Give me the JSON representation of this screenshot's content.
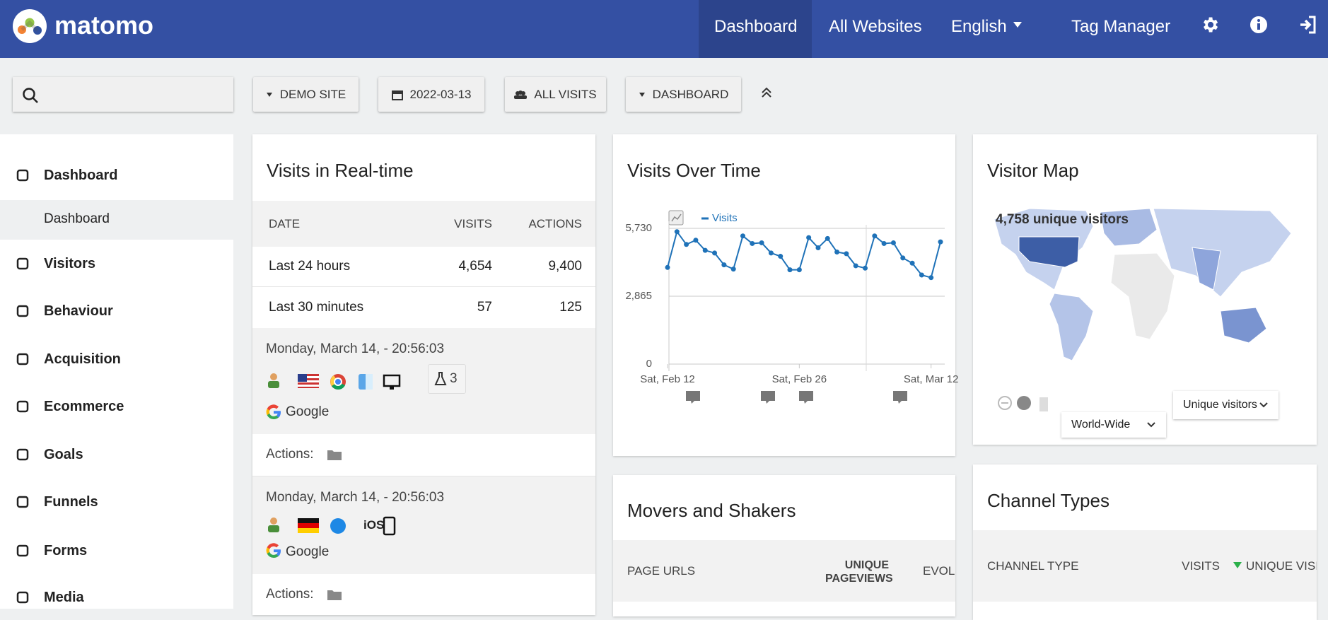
{
  "header": {
    "logo": "matomo",
    "nav": {
      "dashboard": "Dashboard",
      "all_websites": "All Websites",
      "language": "English",
      "tag_manager": "Tag Manager"
    }
  },
  "toolbar": {
    "site": "DEMO SITE",
    "date": "2022-03-13",
    "segment": "ALL VISITS",
    "dashboard": "DASHBOARD"
  },
  "sidebar": {
    "items": [
      "Dashboard",
      "Visitors",
      "Behaviour",
      "Acquisition",
      "Ecommerce",
      "Goals",
      "Funnels",
      "Forms",
      "Media"
    ],
    "subitem": "Dashboard"
  },
  "realtime": {
    "title": "Visits in Real-time",
    "columns": [
      "DATE",
      "VISITS",
      "ACTIONS"
    ],
    "rows": [
      [
        "Last 24 hours",
        "4,654",
        "9,400"
      ],
      [
        "Last 30 minutes",
        "57",
        "125"
      ]
    ],
    "visits": [
      {
        "time": "Monday, March 14, - 20:56:03",
        "experiments": "3",
        "referrer": "Google",
        "actions": "Actions:"
      },
      {
        "time": "Monday, March 14, - 20:56:03",
        "os": "iOS",
        "referrer": "Google",
        "actions": "Actions:"
      }
    ]
  },
  "chart_data": {
    "type": "line",
    "title": "Visits Over Time",
    "categories": [
      "Sat, Feb 12",
      null,
      null,
      null,
      null,
      null,
      null,
      null,
      null,
      null,
      null,
      null,
      null,
      null,
      "Sat, Feb 26",
      null,
      null,
      null,
      null,
      null,
      null,
      null,
      null,
      null,
      null,
      null,
      null,
      null,
      "Sat, Mar 12",
      null
    ],
    "series": [
      {
        "name": "Visits",
        "color": "#1f72b8",
        "values": [
          4080,
          5590,
          5050,
          5230,
          4800,
          4690,
          4190,
          4010,
          5410,
          5090,
          5120,
          4690,
          4550,
          3980,
          3980,
          5340,
          4910,
          5300,
          4730,
          4660,
          4150,
          4050,
          5410,
          5090,
          5120,
          4480,
          4260,
          3760,
          3650,
          5160
        ]
      }
    ],
    "ylim": [
      0,
      5730
    ],
    "yticks": [
      0,
      {
        "value": 2865,
        "label": "2,865"
      },
      {
        "value": 5730,
        "label": "5,730"
      }
    ],
    "grid": true
  },
  "visitor_map": {
    "title": "Visitor Map",
    "summary": "4,758 unique visitors",
    "region": "World-Wide",
    "metric": "Unique visitors"
  },
  "movers_and_shakers": {
    "title": "Movers and Shakers",
    "columns": [
      "PAGE URLS",
      "UNIQUE PAGEVIEWS",
      "EVOLUTION"
    ]
  },
  "channel_types": {
    "title": "Channel Types",
    "columns": [
      "CHANNEL TYPE",
      "VISITS",
      "UNIQUE VISITORS"
    ]
  }
}
